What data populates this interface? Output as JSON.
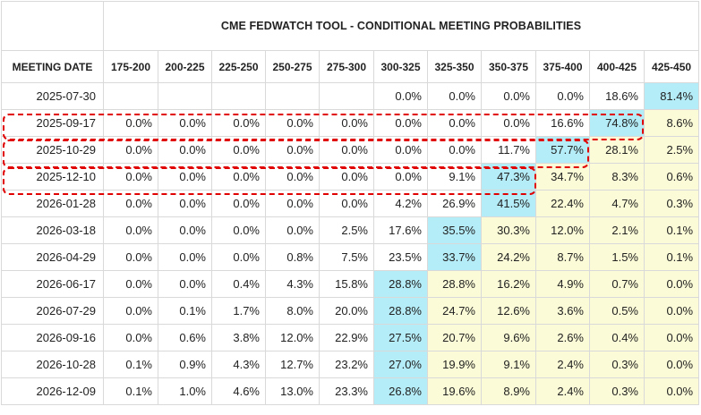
{
  "title": "CME FEDWATCH TOOL - CONDITIONAL MEETING PROBABILITIES",
  "header": {
    "date_col": "MEETING DATE",
    "ranges": [
      "175-200",
      "200-225",
      "225-250",
      "250-275",
      "275-300",
      "300-325",
      "325-350",
      "350-375",
      "375-400",
      "400-425",
      "425-450"
    ]
  },
  "rows": [
    {
      "date": "2025-07-30",
      "cells": [
        "",
        "",
        "",
        "",
        "",
        "0.0%",
        "0.0%",
        "0.0%",
        "0.0%",
        "18.6%",
        "81.4%"
      ]
    },
    {
      "date": "2025-09-17",
      "cells": [
        "0.0%",
        "0.0%",
        "0.0%",
        "0.0%",
        "0.0%",
        "0.0%",
        "0.0%",
        "0.0%",
        "16.6%",
        "74.8%",
        "8.6%"
      ]
    },
    {
      "date": "2025-10-29",
      "cells": [
        "0.0%",
        "0.0%",
        "0.0%",
        "0.0%",
        "0.0%",
        "0.0%",
        "0.0%",
        "11.7%",
        "57.7%",
        "28.1%",
        "2.5%"
      ]
    },
    {
      "date": "2025-12-10",
      "cells": [
        "0.0%",
        "0.0%",
        "0.0%",
        "0.0%",
        "0.0%",
        "0.0%",
        "9.1%",
        "47.3%",
        "34.7%",
        "8.3%",
        "0.6%"
      ]
    },
    {
      "date": "2026-01-28",
      "cells": [
        "0.0%",
        "0.0%",
        "0.0%",
        "0.0%",
        "0.0%",
        "4.2%",
        "26.9%",
        "41.5%",
        "22.4%",
        "4.7%",
        "0.3%"
      ]
    },
    {
      "date": "2026-03-18",
      "cells": [
        "0.0%",
        "0.0%",
        "0.0%",
        "0.0%",
        "2.5%",
        "17.6%",
        "35.5%",
        "30.3%",
        "12.0%",
        "2.1%",
        "0.1%"
      ]
    },
    {
      "date": "2026-04-29",
      "cells": [
        "0.0%",
        "0.0%",
        "0.0%",
        "0.8%",
        "7.5%",
        "23.5%",
        "33.7%",
        "24.2%",
        "8.7%",
        "1.5%",
        "0.1%"
      ]
    },
    {
      "date": "2026-06-17",
      "cells": [
        "0.0%",
        "0.0%",
        "0.4%",
        "4.3%",
        "15.8%",
        "28.8%",
        "28.8%",
        "16.2%",
        "4.9%",
        "0.7%",
        "0.0%"
      ]
    },
    {
      "date": "2026-07-29",
      "cells": [
        "0.0%",
        "0.1%",
        "1.7%",
        "8.0%",
        "20.0%",
        "28.8%",
        "24.7%",
        "12.6%",
        "3.6%",
        "0.5%",
        "0.0%"
      ]
    },
    {
      "date": "2026-09-16",
      "cells": [
        "0.0%",
        "0.6%",
        "3.8%",
        "12.0%",
        "22.9%",
        "27.5%",
        "20.7%",
        "9.6%",
        "2.6%",
        "0.4%",
        "0.0%"
      ]
    },
    {
      "date": "2026-10-28",
      "cells": [
        "0.1%",
        "0.9%",
        "4.3%",
        "12.7%",
        "23.2%",
        "27.0%",
        "19.9%",
        "9.1%",
        "2.4%",
        "0.3%",
        "0.0%"
      ]
    },
    {
      "date": "2026-12-09",
      "cells": [
        "0.1%",
        "1.0%",
        "4.6%",
        "13.0%",
        "23.3%",
        "26.8%",
        "19.6%",
        "8.9%",
        "2.4%",
        "0.3%",
        "0.0%"
      ]
    }
  ],
  "highlight_colors": {
    "max": "#b4ecf7",
    "above_max": "#fbfbd7",
    "annotation": "#e00000"
  },
  "highlights": [
    {
      "row": 0,
      "max": 10,
      "above": []
    },
    {
      "row": 1,
      "max": 9,
      "above": [
        10
      ]
    },
    {
      "row": 2,
      "max": 8,
      "above": [
        9,
        10
      ]
    },
    {
      "row": 3,
      "max": 7,
      "above": [
        8,
        9,
        10
      ]
    },
    {
      "row": 4,
      "max": 7,
      "above": [
        8,
        9,
        10
      ]
    },
    {
      "row": 5,
      "max": 6,
      "above": [
        7,
        8,
        9,
        10
      ]
    },
    {
      "row": 6,
      "max": 6,
      "above": [
        7,
        8,
        9,
        10
      ]
    },
    {
      "row": 7,
      "max": 5,
      "above": [
        6,
        7,
        8,
        9,
        10
      ]
    },
    {
      "row": 8,
      "max": 5,
      "above": [
        6,
        7,
        8,
        9,
        10
      ]
    },
    {
      "row": 9,
      "max": 5,
      "above": [
        6,
        7,
        8,
        9,
        10
      ]
    },
    {
      "row": 10,
      "max": 5,
      "above": [
        6,
        7,
        8,
        9,
        10
      ]
    },
    {
      "row": 11,
      "max": 5,
      "above": [
        6,
        7,
        8,
        9,
        10
      ]
    }
  ]
}
